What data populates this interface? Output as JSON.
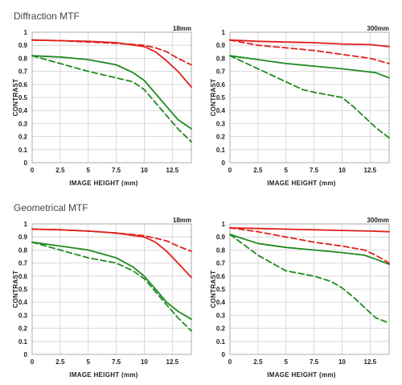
{
  "sections": {
    "diffraction_title": "Diffraction MTF",
    "geometrical_title": "Geometrical MTF"
  },
  "colors": {
    "red": "#e0201c",
    "green": "#1f8a1f",
    "grid": "#d0d0d0"
  },
  "chart_data": [
    {
      "type": "line",
      "title": "18mm",
      "xlabel": "IMAGE HEIGHT (mm)",
      "ylabel": "CONTRAST",
      "xlim": [
        0,
        14.2
      ],
      "ylim": [
        0,
        1
      ],
      "xticks": [
        0,
        2.5,
        5,
        7.5,
        10,
        12.5
      ],
      "xtick_labels": [
        "0",
        "2.5",
        "5",
        "7.5",
        "10",
        "12.5"
      ],
      "yticks": [
        0,
        0.1,
        0.2,
        0.3,
        0.4,
        0.5,
        0.6,
        0.7,
        0.8,
        0.9,
        1
      ],
      "ytick_labels": [
        "0",
        "0.1",
        "0.2",
        "0.3",
        "0.4",
        "0.5",
        "0.6",
        "0.7",
        "0.8",
        "0.9",
        "1"
      ],
      "grid": true,
      "series": [
        {
          "color": "red",
          "dash": false,
          "x": [
            0,
            2.5,
            5,
            7.5,
            10,
            11,
            12,
            13,
            14.2
          ],
          "y": [
            0.94,
            0.935,
            0.93,
            0.92,
            0.89,
            0.85,
            0.78,
            0.7,
            0.58
          ]
        },
        {
          "color": "red",
          "dash": true,
          "x": [
            0,
            2.5,
            5,
            7.5,
            10,
            11,
            12,
            13,
            14.2
          ],
          "y": [
            0.94,
            0.935,
            0.925,
            0.915,
            0.9,
            0.88,
            0.85,
            0.8,
            0.75
          ]
        },
        {
          "color": "green",
          "dash": false,
          "x": [
            0,
            2.5,
            5,
            7.5,
            9,
            10,
            11,
            12,
            13,
            14.2
          ],
          "y": [
            0.82,
            0.81,
            0.79,
            0.75,
            0.69,
            0.63,
            0.53,
            0.43,
            0.33,
            0.26
          ]
        },
        {
          "color": "green",
          "dash": true,
          "x": [
            0,
            2.5,
            5,
            7.5,
            9,
            10,
            11,
            12,
            13,
            14.2
          ],
          "y": [
            0.82,
            0.76,
            0.7,
            0.65,
            0.62,
            0.56,
            0.46,
            0.36,
            0.26,
            0.16
          ]
        }
      ]
    },
    {
      "type": "line",
      "title": "300mm",
      "xlabel": "IMAGE HEIGHT (mm)",
      "ylabel": "CONTRAST",
      "xlim": [
        0,
        14.2
      ],
      "ylim": [
        0,
        1
      ],
      "xticks": [
        0,
        2.5,
        5,
        7.5,
        10,
        12.5
      ],
      "xtick_labels": [
        "0",
        "2.5",
        "5",
        "7.5",
        "10",
        "12.5"
      ],
      "yticks": [
        0,
        0.1,
        0.2,
        0.3,
        0.4,
        0.5,
        0.6,
        0.7,
        0.8,
        0.9,
        1
      ],
      "ytick_labels": [
        "0",
        "0.1",
        "0.2",
        "0.3",
        "0.4",
        "0.5",
        "0.6",
        "0.7",
        "0.8",
        "0.9",
        "1"
      ],
      "grid": true,
      "series": [
        {
          "color": "red",
          "dash": false,
          "x": [
            0,
            2.5,
            5,
            7.5,
            10,
            12.5,
            14.2
          ],
          "y": [
            0.94,
            0.93,
            0.925,
            0.92,
            0.91,
            0.905,
            0.89
          ]
        },
        {
          "color": "red",
          "dash": true,
          "x": [
            0,
            2.5,
            5,
            7.5,
            10,
            12.5,
            14.2
          ],
          "y": [
            0.94,
            0.9,
            0.88,
            0.86,
            0.83,
            0.8,
            0.76
          ]
        },
        {
          "color": "green",
          "dash": false,
          "x": [
            0,
            2.5,
            5,
            7.5,
            10,
            12,
            13,
            14.2
          ],
          "y": [
            0.82,
            0.79,
            0.76,
            0.74,
            0.72,
            0.7,
            0.69,
            0.65
          ]
        },
        {
          "color": "green",
          "dash": true,
          "x": [
            0,
            2.5,
            5,
            6.5,
            7.5,
            10,
            11,
            12,
            13,
            14.2
          ],
          "y": [
            0.82,
            0.72,
            0.62,
            0.56,
            0.54,
            0.5,
            0.43,
            0.35,
            0.27,
            0.19
          ]
        }
      ]
    },
    {
      "type": "line",
      "title": "18mm",
      "xlabel": "IMAGE HEIGHT (mm)",
      "ylabel": "CONTRAST",
      "xlim": [
        0,
        14.2
      ],
      "ylim": [
        0,
        1
      ],
      "xticks": [
        0,
        2.5,
        5,
        7.5,
        10,
        12.5
      ],
      "xtick_labels": [
        "0",
        "2.5",
        "5",
        "7.5",
        "10",
        "12.5"
      ],
      "yticks": [
        0,
        0.1,
        0.2,
        0.3,
        0.4,
        0.5,
        0.6,
        0.7,
        0.8,
        0.9,
        1
      ],
      "ytick_labels": [
        "0",
        "0.1",
        "0.2",
        "0.3",
        "0.4",
        "0.5",
        "0.6",
        "0.7",
        "0.8",
        "0.9",
        "1"
      ],
      "grid": true,
      "series": [
        {
          "color": "red",
          "dash": false,
          "x": [
            0,
            2.5,
            5,
            7.5,
            10,
            11,
            12,
            13,
            14.2
          ],
          "y": [
            0.96,
            0.955,
            0.945,
            0.93,
            0.9,
            0.86,
            0.79,
            0.7,
            0.59
          ]
        },
        {
          "color": "red",
          "dash": true,
          "x": [
            0,
            2.5,
            5,
            7.5,
            10,
            11,
            12,
            13,
            14.2
          ],
          "y": [
            0.96,
            0.955,
            0.945,
            0.93,
            0.91,
            0.89,
            0.87,
            0.83,
            0.79
          ]
        },
        {
          "color": "green",
          "dash": false,
          "x": [
            0,
            2.5,
            5,
            7.5,
            9,
            10,
            11,
            12,
            13,
            14.2
          ],
          "y": [
            0.86,
            0.83,
            0.8,
            0.74,
            0.67,
            0.6,
            0.5,
            0.4,
            0.33,
            0.27
          ]
        },
        {
          "color": "green",
          "dash": true,
          "x": [
            0,
            2.5,
            5,
            7.5,
            9,
            10,
            11,
            12,
            13,
            14.2
          ],
          "y": [
            0.86,
            0.8,
            0.74,
            0.7,
            0.64,
            0.58,
            0.48,
            0.38,
            0.28,
            0.18
          ]
        }
      ]
    },
    {
      "type": "line",
      "title": "300mm",
      "xlabel": "IMAGE HEIGHT (mm)",
      "ylabel": "CONTRAST",
      "xlim": [
        0,
        14.2
      ],
      "ylim": [
        0,
        1
      ],
      "xticks": [
        0,
        2.5,
        5,
        7.5,
        10,
        12.5
      ],
      "xtick_labels": [
        "0",
        "2.5",
        "5",
        "7.5",
        "10",
        "12.5"
      ],
      "yticks": [
        0,
        0.1,
        0.2,
        0.3,
        0.4,
        0.5,
        0.6,
        0.7,
        0.8,
        0.9,
        1
      ],
      "ytick_labels": [
        "0",
        "0.1",
        "0.2",
        "0.3",
        "0.4",
        "0.5",
        "0.6",
        "0.7",
        "0.8",
        "0.9",
        "1"
      ],
      "grid": true,
      "series": [
        {
          "color": "red",
          "dash": false,
          "x": [
            0,
            2.5,
            5,
            7.5,
            10,
            12.5,
            14.2
          ],
          "y": [
            0.97,
            0.965,
            0.96,
            0.955,
            0.95,
            0.945,
            0.94
          ]
        },
        {
          "color": "red",
          "dash": true,
          "x": [
            0,
            2.5,
            5,
            7.5,
            10,
            12,
            13,
            14.2
          ],
          "y": [
            0.97,
            0.94,
            0.9,
            0.86,
            0.83,
            0.8,
            0.76,
            0.7
          ]
        },
        {
          "color": "green",
          "dash": false,
          "x": [
            0,
            2.5,
            5,
            7.5,
            10,
            12,
            13,
            14.2
          ],
          "y": [
            0.92,
            0.85,
            0.82,
            0.8,
            0.78,
            0.76,
            0.73,
            0.69
          ]
        },
        {
          "color": "green",
          "dash": true,
          "x": [
            0,
            2.5,
            5,
            7.5,
            9,
            10,
            11,
            12,
            13,
            14.2
          ],
          "y": [
            0.92,
            0.76,
            0.64,
            0.6,
            0.56,
            0.51,
            0.44,
            0.36,
            0.28,
            0.24
          ]
        }
      ]
    }
  ]
}
